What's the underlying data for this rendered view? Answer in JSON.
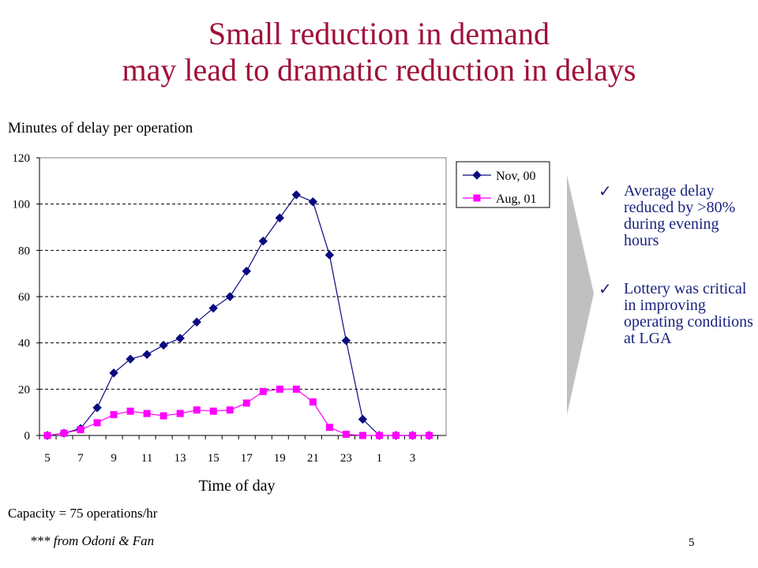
{
  "slide": {
    "title_line1": "Small reduction in demand",
    "title_line2": "may lead to dramatic reduction in delays",
    "capacity_note": "Capacity = 75 operations/hr",
    "source": "*** from Odoni & Fan",
    "page_number": "5"
  },
  "bullets": [
    {
      "text": "Average delay reduced by >80% during evening hours"
    },
    {
      "text": "Lottery was critical in improving operating conditions at LGA"
    }
  ],
  "colors": {
    "title": "#a0103a",
    "bullet_text": "#1a237e",
    "nov": "#0a0a80",
    "aug": "#ff00ff",
    "arrow": "#c0c0c0"
  },
  "icons": {
    "bullet": "checkmark-icon",
    "divider": "chevron-arrow-shape"
  },
  "chart_data": {
    "type": "line",
    "title": "",
    "xlabel": "Time of day",
    "ylabel": "Minutes of delay per operation",
    "categories": [
      "5",
      "6",
      "7",
      "8",
      "9",
      "10",
      "11",
      "12",
      "13",
      "14",
      "15",
      "16",
      "17",
      "18",
      "19",
      "20",
      "21",
      "22",
      "23",
      "24",
      "1",
      "2",
      "3",
      "4"
    ],
    "x_tick_labels": [
      "5",
      "7",
      "9",
      "11",
      "13",
      "15",
      "17",
      "19",
      "21",
      "23",
      "1",
      "3"
    ],
    "ylim": [
      0,
      120
    ],
    "y_ticks": [
      0,
      20,
      40,
      60,
      80,
      100,
      120
    ],
    "grid": "horizontal dashed",
    "legend_position": "top-right",
    "series": [
      {
        "name": "Nov, 00",
        "marker": "diamond",
        "values": [
          0,
          1,
          3,
          12,
          27,
          33,
          35,
          39,
          42,
          49,
          55,
          60,
          71,
          84,
          94,
          104,
          101,
          78,
          41,
          7,
          0,
          0,
          0,
          0
        ]
      },
      {
        "name": "Aug, 01",
        "marker": "square",
        "values": [
          0,
          1,
          2.5,
          5.5,
          9,
          10.5,
          9.5,
          8.5,
          9.5,
          11,
          10.5,
          11,
          14,
          19,
          20,
          20,
          14.5,
          3.5,
          0.5,
          0,
          0,
          0,
          0,
          0
        ]
      }
    ]
  }
}
